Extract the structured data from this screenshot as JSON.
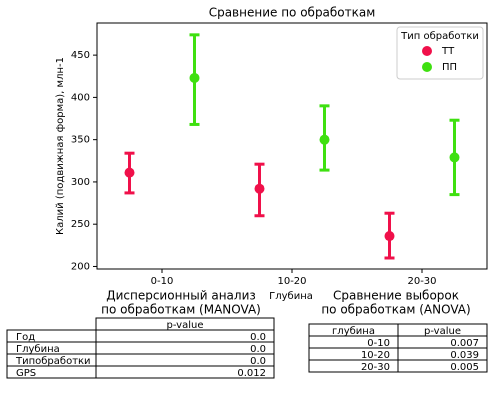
{
  "chart_data": {
    "type": "point",
    "title": "Сравнение по обработкам",
    "x_label": "Глубина",
    "y_label": "Калий (подвижная форма), млн-1",
    "categories": [
      "0-10",
      "10-20",
      "20-30"
    ],
    "series": [
      {
        "name": "ТТ",
        "color": "#f0104a",
        "values": [
          311,
          292,
          236
        ],
        "ci_low": [
          287,
          260,
          210
        ],
        "ci_high": [
          334,
          321,
          263
        ]
      },
      {
        "name": "ПП",
        "color": "#3fe010",
        "values": [
          423,
          350,
          329
        ],
        "ci_low": [
          368,
          314,
          285
        ],
        "ci_high": [
          474,
          390,
          373
        ]
      }
    ],
    "ylim": [
      197,
      488
    ],
    "yticks": [
      200,
      250,
      300,
      350,
      400,
      450
    ],
    "legend": {
      "title": "Тип обработки",
      "position": "upper right"
    }
  },
  "tables": [
    {
      "title_lines": [
        "Дисперсионный анализ",
        "по обработкам (MANOVA)"
      ],
      "columns": [
        "p-value"
      ],
      "rows": [
        [
          "Год",
          "0.0"
        ],
        [
          "Глубина",
          "0.0"
        ],
        [
          "Типобработки",
          "0.0"
        ],
        [
          "GPS",
          "0.012"
        ]
      ]
    },
    {
      "title_lines": [
        "Сравнение выборок",
        "по обработкам (ANOVA)"
      ],
      "columns": [
        "глубина",
        "p-value"
      ],
      "rows": [
        [
          "0-10",
          "0.007"
        ],
        [
          "10-20",
          "0.039"
        ],
        [
          "20-30",
          "0.005"
        ]
      ]
    }
  ]
}
